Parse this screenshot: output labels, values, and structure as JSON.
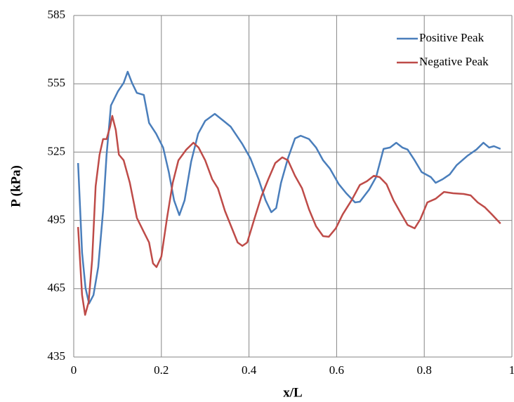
{
  "chart_data": {
    "type": "line",
    "xlabel": "x/L",
    "ylabel": "P (kPa)",
    "xlim": [
      0,
      1
    ],
    "xticks": [
      0,
      0.2,
      0.4,
      0.6,
      0.8,
      1
    ],
    "ylim": [
      435,
      585
    ],
    "yticks": [
      435,
      465,
      495,
      525,
      555,
      585
    ],
    "grid": true,
    "legend": "upper right",
    "series": [
      {
        "name": "Positive Peak",
        "color": "#4a7ebb",
        "x": [
          0.01,
          0.019,
          0.027,
          0.035,
          0.045,
          0.056,
          0.067,
          0.075,
          0.085,
          0.101,
          0.114,
          0.123,
          0.133,
          0.144,
          0.16,
          0.172,
          0.188,
          0.204,
          0.217,
          0.229,
          0.241,
          0.253,
          0.268,
          0.284,
          0.3,
          0.322,
          0.342,
          0.358,
          0.385,
          0.403,
          0.422,
          0.438,
          0.451,
          0.462,
          0.473,
          0.489,
          0.505,
          0.518,
          0.537,
          0.553,
          0.569,
          0.585,
          0.605,
          0.622,
          0.642,
          0.653,
          0.674,
          0.69,
          0.707,
          0.722,
          0.736,
          0.75,
          0.762,
          0.778,
          0.794,
          0.815,
          0.826,
          0.842,
          0.858,
          0.874,
          0.898,
          0.919,
          0.935,
          0.948,
          0.959,
          0.974
        ],
        "values": [
          520.2,
          480.7,
          465.3,
          458.5,
          462.2,
          474.5,
          499.2,
          523.9,
          545.5,
          551.7,
          555.4,
          560.3,
          555.4,
          551,
          550.1,
          537.8,
          533.1,
          527,
          516.2,
          503.8,
          497.3,
          503.8,
          520.8,
          533.1,
          538.7,
          541.8,
          538.7,
          536.2,
          528.5,
          522.3,
          513.1,
          503.8,
          498.6,
          500.4,
          511.5,
          522.3,
          531,
          532.2,
          530.7,
          527,
          521.4,
          517.7,
          510.9,
          506.9,
          502.9,
          503.2,
          508.5,
          514,
          526.4,
          527,
          529.1,
          527,
          526.1,
          521.4,
          516.2,
          514,
          511.5,
          513.1,
          515.2,
          519.3,
          523.3,
          526.1,
          529.1,
          527,
          527.6,
          526.4
        ]
      },
      {
        "name": "Negative Peak",
        "color": "#be4b48",
        "x": [
          0.01,
          0.019,
          0.026,
          0.034,
          0.042,
          0.05,
          0.059,
          0.067,
          0.075,
          0.083,
          0.088,
          0.096,
          0.103,
          0.114,
          0.128,
          0.144,
          0.16,
          0.172,
          0.181,
          0.189,
          0.2,
          0.213,
          0.226,
          0.239,
          0.257,
          0.273,
          0.285,
          0.3,
          0.316,
          0.329,
          0.345,
          0.361,
          0.374,
          0.385,
          0.396,
          0.412,
          0.428,
          0.444,
          0.46,
          0.476,
          0.489,
          0.505,
          0.521,
          0.537,
          0.553,
          0.569,
          0.582,
          0.598,
          0.614,
          0.634,
          0.653,
          0.669,
          0.685,
          0.698,
          0.714,
          0.73,
          0.746,
          0.762,
          0.778,
          0.791,
          0.807,
          0.826,
          0.845,
          0.866,
          0.89,
          0.906,
          0.922,
          0.938,
          0.954,
          0.974
        ],
        "values": [
          492.1,
          462.2,
          453.5,
          459.1,
          477.6,
          510,
          523.9,
          530.7,
          530.7,
          536.2,
          540.9,
          534.7,
          523.9,
          521.4,
          511.5,
          496.1,
          489.9,
          485.3,
          476.1,
          474.5,
          479.1,
          496.1,
          511.5,
          521.4,
          526.1,
          529.1,
          527,
          521.4,
          513.1,
          509.1,
          499.2,
          491.5,
          485.3,
          483.8,
          485.3,
          495.5,
          505.4,
          513.1,
          520.2,
          522.7,
          521.4,
          514.6,
          509.1,
          499.8,
          492.4,
          488.1,
          487.8,
          491.5,
          497.7,
          503.8,
          510.6,
          512.2,
          514.6,
          514,
          510.9,
          503.8,
          498.3,
          493,
          491.5,
          495.5,
          502.9,
          504.5,
          507.5,
          506.9,
          506.6,
          506,
          502.9,
          500.8,
          497.7,
          493.6
        ]
      }
    ]
  }
}
